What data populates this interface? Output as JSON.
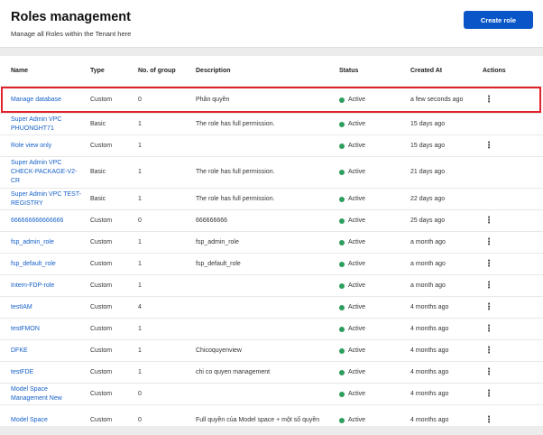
{
  "header": {
    "title": "Roles management",
    "subtitle": "Manage all Roles within the Tenant here",
    "create_button": "Create role"
  },
  "table": {
    "columns": {
      "name": "Name",
      "type": "Type",
      "groups": "No. of group",
      "description": "Description",
      "status": "Status",
      "created": "Created At",
      "actions": "Actions"
    },
    "rows": [
      {
        "name": "Manage database",
        "type": "Custom",
        "groups": "0",
        "description": "Phân quyền",
        "status": "Active",
        "created": "a few seconds ago",
        "actions": "⋮"
      },
      {
        "name": "Super Admin VPC PHUONGHT71",
        "type": "Basic",
        "groups": "1",
        "description": "The role has full permission.",
        "status": "Active",
        "created": "15 days ago",
        "actions": ""
      },
      {
        "name": "Role view only",
        "type": "Custom",
        "groups": "1",
        "description": "",
        "status": "Active",
        "created": "15 days ago",
        "actions": "⋮"
      },
      {
        "name": "Super Admin VPC CHECK-PACKAGE-V2-CR",
        "type": "Basic",
        "groups": "1",
        "description": "The role has full permission.",
        "status": "Active",
        "created": "21 days ago",
        "actions": ""
      },
      {
        "name": "Super Admin VPC TEST-REGISTRY",
        "type": "Basic",
        "groups": "1",
        "description": "The role has full permission.",
        "status": "Active",
        "created": "22 days ago",
        "actions": ""
      },
      {
        "name": "666666666666666",
        "type": "Custom",
        "groups": "0",
        "description": "666666666",
        "status": "Active",
        "created": "25 days ago",
        "actions": "⋮"
      },
      {
        "name": "fsp_admin_role",
        "type": "Custom",
        "groups": "1",
        "description": "fsp_admin_role",
        "status": "Active",
        "created": "a month ago",
        "actions": "⋮"
      },
      {
        "name": "fsp_default_role",
        "type": "Custom",
        "groups": "1",
        "description": "fsp_default_role",
        "status": "Active",
        "created": "a month ago",
        "actions": "⋮"
      },
      {
        "name": "Intern-FDP-role",
        "type": "Custom",
        "groups": "1",
        "description": "",
        "status": "Active",
        "created": "a month ago",
        "actions": "⋮"
      },
      {
        "name": "testIAM",
        "type": "Custom",
        "groups": "4",
        "description": "",
        "status": "Active",
        "created": "4 months ago",
        "actions": "⋮"
      },
      {
        "name": "testFMON",
        "type": "Custom",
        "groups": "1",
        "description": "",
        "status": "Active",
        "created": "4 months ago",
        "actions": "⋮"
      },
      {
        "name": "DFKE",
        "type": "Custom",
        "groups": "1",
        "description": "Chicoquyenview",
        "status": "Active",
        "created": "4 months ago",
        "actions": "⋮"
      },
      {
        "name": "testFDE",
        "type": "Custom",
        "groups": "1",
        "description": "chi co quyen management",
        "status": "Active",
        "created": "4 months ago",
        "actions": "⋮"
      },
      {
        "name": "Model Space Management New",
        "type": "Custom",
        "groups": "0",
        "description": "",
        "status": "Active",
        "created": "4 months ago",
        "actions": "⋮"
      },
      {
        "name": "Model Space",
        "type": "Custom",
        "groups": "0",
        "description": "Full quyền của Model space + một số quyền",
        "status": "Active",
        "created": "4 months ago",
        "actions": "⋮"
      }
    ]
  },
  "colors": {
    "accent": "#0a56c8",
    "link": "#1660c8",
    "status_active": "#2e9e5e",
    "highlight": "#e0222a"
  }
}
